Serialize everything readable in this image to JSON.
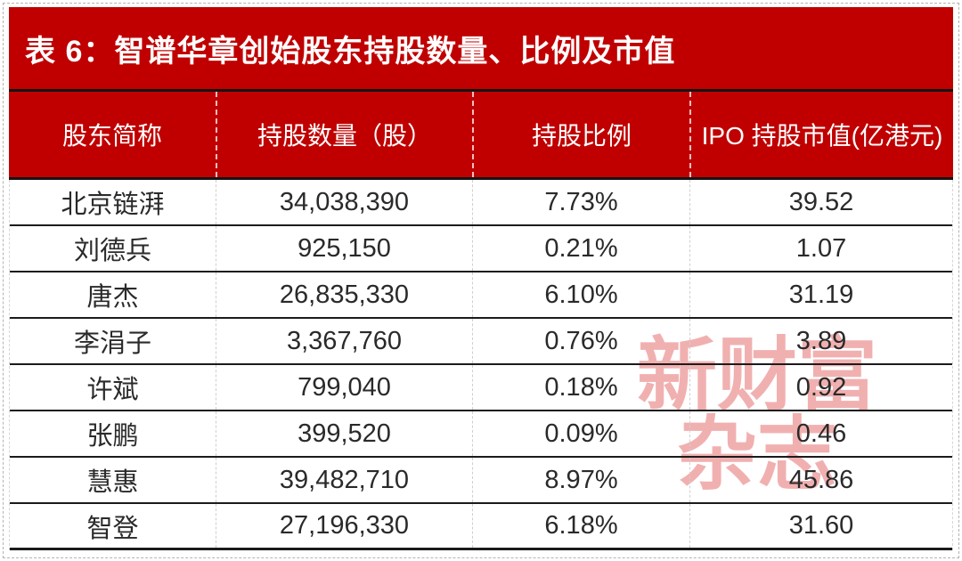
{
  "chart_data": {
    "type": "table",
    "title": "表 6：智谱华章创始股东持股数量、比例及市值",
    "columns": [
      "股东简称",
      "持股数量（股）",
      "持股比例",
      "IPO 持股市值(亿港元)"
    ],
    "rows": [
      [
        "北京链湃",
        "34,038,390",
        "7.73%",
        "39.52"
      ],
      [
        "刘德兵",
        "925,150",
        "0.21%",
        "1.07"
      ],
      [
        "唐杰",
        "26,835,330",
        "6.10%",
        "31.19"
      ],
      [
        "李涓子",
        "3,367,760",
        "0.76%",
        "3.89"
      ],
      [
        "许斌",
        "799,040",
        "0.18%",
        "0.92"
      ],
      [
        "张鹏",
        "399,520",
        "0.09%",
        "0.46"
      ],
      [
        "慧惠",
        "39,482,710",
        "8.97%",
        "45.86"
      ],
      [
        "智登",
        "27,196,330",
        "6.18%",
        "31.60"
      ]
    ],
    "units": {
      "shares": "股",
      "market_value": "亿港元"
    }
  },
  "watermark": {
    "line1": "新财富",
    "line2": "杂志"
  },
  "colors": {
    "accent_red": "#c00000",
    "line_black": "#1b1b1b",
    "body_text": "#2a2a2a",
    "watermark_pink": "#f1b0b0",
    "dashed_grid": "#cfcfcf"
  }
}
